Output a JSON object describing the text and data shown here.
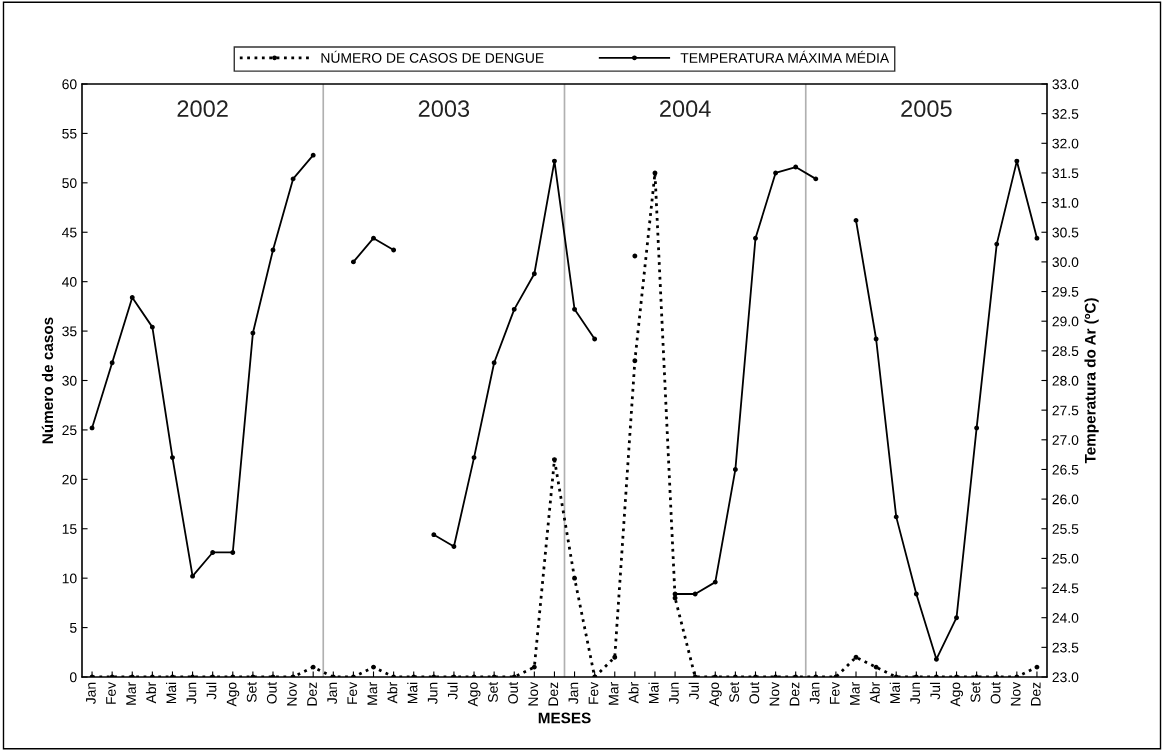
{
  "chart_data": {
    "type": "line",
    "xlabel": "MESES",
    "ylabel": "Número de casos",
    "y2label": "Temperatura do Ar (ºC)",
    "categories": [
      "Jan",
      "Fev",
      "Mar",
      "Abr",
      "Mai",
      "Jun",
      "Jul",
      "Ago",
      "Set",
      "Out",
      "Nov",
      "Dez",
      "Jan",
      "Fev",
      "Mar",
      "Abr",
      "Mai",
      "Jun",
      "Jul",
      "Ago",
      "Set",
      "Out",
      "Nov",
      "Dez",
      "Jan",
      "Fev",
      "Mar",
      "Abr",
      "Mai",
      "Jun",
      "Jul",
      "Ago",
      "Set",
      "Out",
      "Nov",
      "Dez",
      "Jan",
      "Fev",
      "Mar",
      "Abr",
      "Mai",
      "Jun",
      "Jul",
      "Ago",
      "Set",
      "Out",
      "Nov",
      "Dez"
    ],
    "ylim": [
      0,
      60
    ],
    "yticks": [
      0,
      5,
      10,
      15,
      20,
      25,
      30,
      35,
      40,
      45,
      50,
      55,
      60
    ],
    "y2lim": [
      23,
      33
    ],
    "y2ticks": [
      {
        "value": 23,
        "label": "23.0"
      },
      {
        "value": 23.5,
        "label": "23.5"
      },
      {
        "value": 24,
        "label": "24.0"
      },
      {
        "value": 24.5,
        "label": "24.5"
      },
      {
        "value": 25,
        "label": "25.0"
      },
      {
        "value": 25.5,
        "label": "25.5"
      },
      {
        "value": 26,
        "label": "26.0"
      },
      {
        "value": 26.5,
        "label": "26.5"
      },
      {
        "value": 27,
        "label": "27.0"
      },
      {
        "value": 27.5,
        "label": "27.5"
      },
      {
        "value": 28,
        "label": "28.0"
      },
      {
        "value": 28.5,
        "label": "28.5"
      },
      {
        "value": 29,
        "label": "29.0"
      },
      {
        "value": 29.5,
        "label": "29.5"
      },
      {
        "value": 30,
        "label": "30.0"
      },
      {
        "value": 30.5,
        "label": "30.5"
      },
      {
        "value": 31,
        "label": "31.0"
      },
      {
        "value": 31.5,
        "label": "31.5"
      },
      {
        "value": 32,
        "label": "32.0"
      },
      {
        "value": 32.5,
        "label": "32.5"
      },
      {
        "value": 33,
        "label": "33.0"
      }
    ],
    "series": [
      {
        "name": "NÚMERO DE CASOS DE DENGUE",
        "color": "#000000",
        "line_style": "dotted",
        "values": [
          0,
          0,
          0,
          0,
          0,
          0,
          0,
          0,
          0,
          0,
          0,
          1,
          0,
          0,
          1,
          0,
          0,
          0,
          0,
          0,
          0,
          0,
          1,
          22,
          10,
          0,
          2,
          32,
          51,
          8,
          0,
          0,
          0,
          0,
          0,
          0,
          0,
          0,
          2,
          1,
          0,
          0,
          0,
          0,
          0,
          0,
          0,
          1
        ]
      },
      {
        "name": "TEMPERATURA MÁXIMA MÉDIA",
        "color": "#000000",
        "line_style": "solid",
        "axis": "y2",
        "values": [
          27.2,
          28.3,
          29.4,
          28.9,
          26.7,
          24.7,
          25.1,
          25.1,
          28.8,
          30.2,
          31.4,
          31.8,
          null,
          30.0,
          30.4,
          30.2,
          null,
          25.4,
          25.2,
          26.7,
          28.3,
          29.2,
          29.8,
          31.7,
          29.2,
          28.7,
          null,
          30.1,
          null,
          24.4,
          24.4,
          24.6,
          26.5,
          30.4,
          31.5,
          31.6,
          31.4,
          null,
          30.7,
          28.7,
          25.7,
          24.4,
          23.3,
          24.0,
          27.2,
          30.3,
          31.7,
          30.4
        ]
      }
    ],
    "annotations": [
      "2002",
      "2003",
      "2004",
      "2005"
    ],
    "marker": "circle",
    "legend": "top"
  }
}
